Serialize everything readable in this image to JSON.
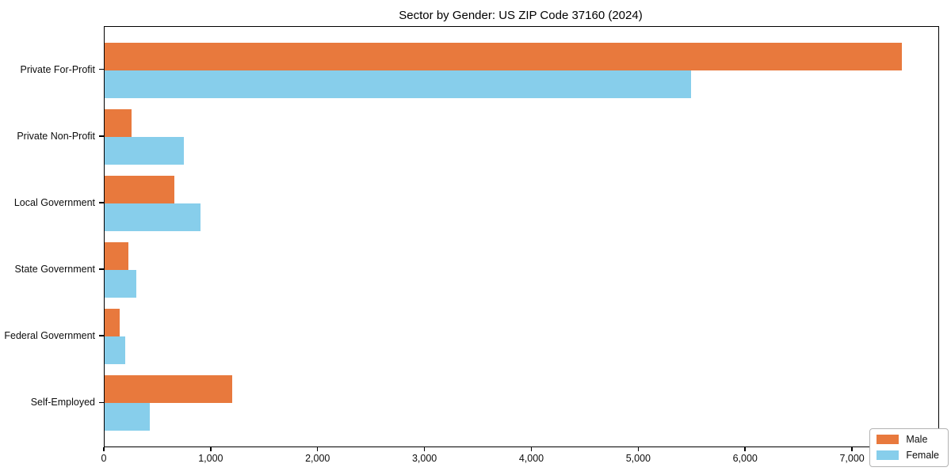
{
  "title": "Sector by Gender: US ZIP Code 37160 (2024)",
  "chart_data": {
    "type": "bar",
    "orientation": "horizontal",
    "title": "Sector by Gender: US ZIP Code 37160 (2024)",
    "categories": [
      "Private For-Profit",
      "Private Non-Profit",
      "Local Government",
      "State Government",
      "Federal Government",
      "Self-Employed"
    ],
    "series": [
      {
        "name": "Male",
        "color": "#E8793D",
        "values": [
          7460,
          250,
          650,
          225,
          140,
          1195
        ]
      },
      {
        "name": "Female",
        "color": "#87CEEB",
        "values": [
          5490,
          740,
          895,
          300,
          195,
          425
        ]
      }
    ],
    "xlabel": "",
    "ylabel": "",
    "xlim": [
      0,
      7800
    ],
    "x_ticks": [
      0,
      1000,
      2000,
      3000,
      4000,
      5000,
      6000,
      7000
    ],
    "x_tick_labels": [
      "0",
      "1,000",
      "2,000",
      "3,000",
      "4,000",
      "5,000",
      "6,000",
      "7,000"
    ],
    "grid": false,
    "legend_position": "lower right",
    "background_color": "#ffffff",
    "spine_color": "#000000"
  }
}
